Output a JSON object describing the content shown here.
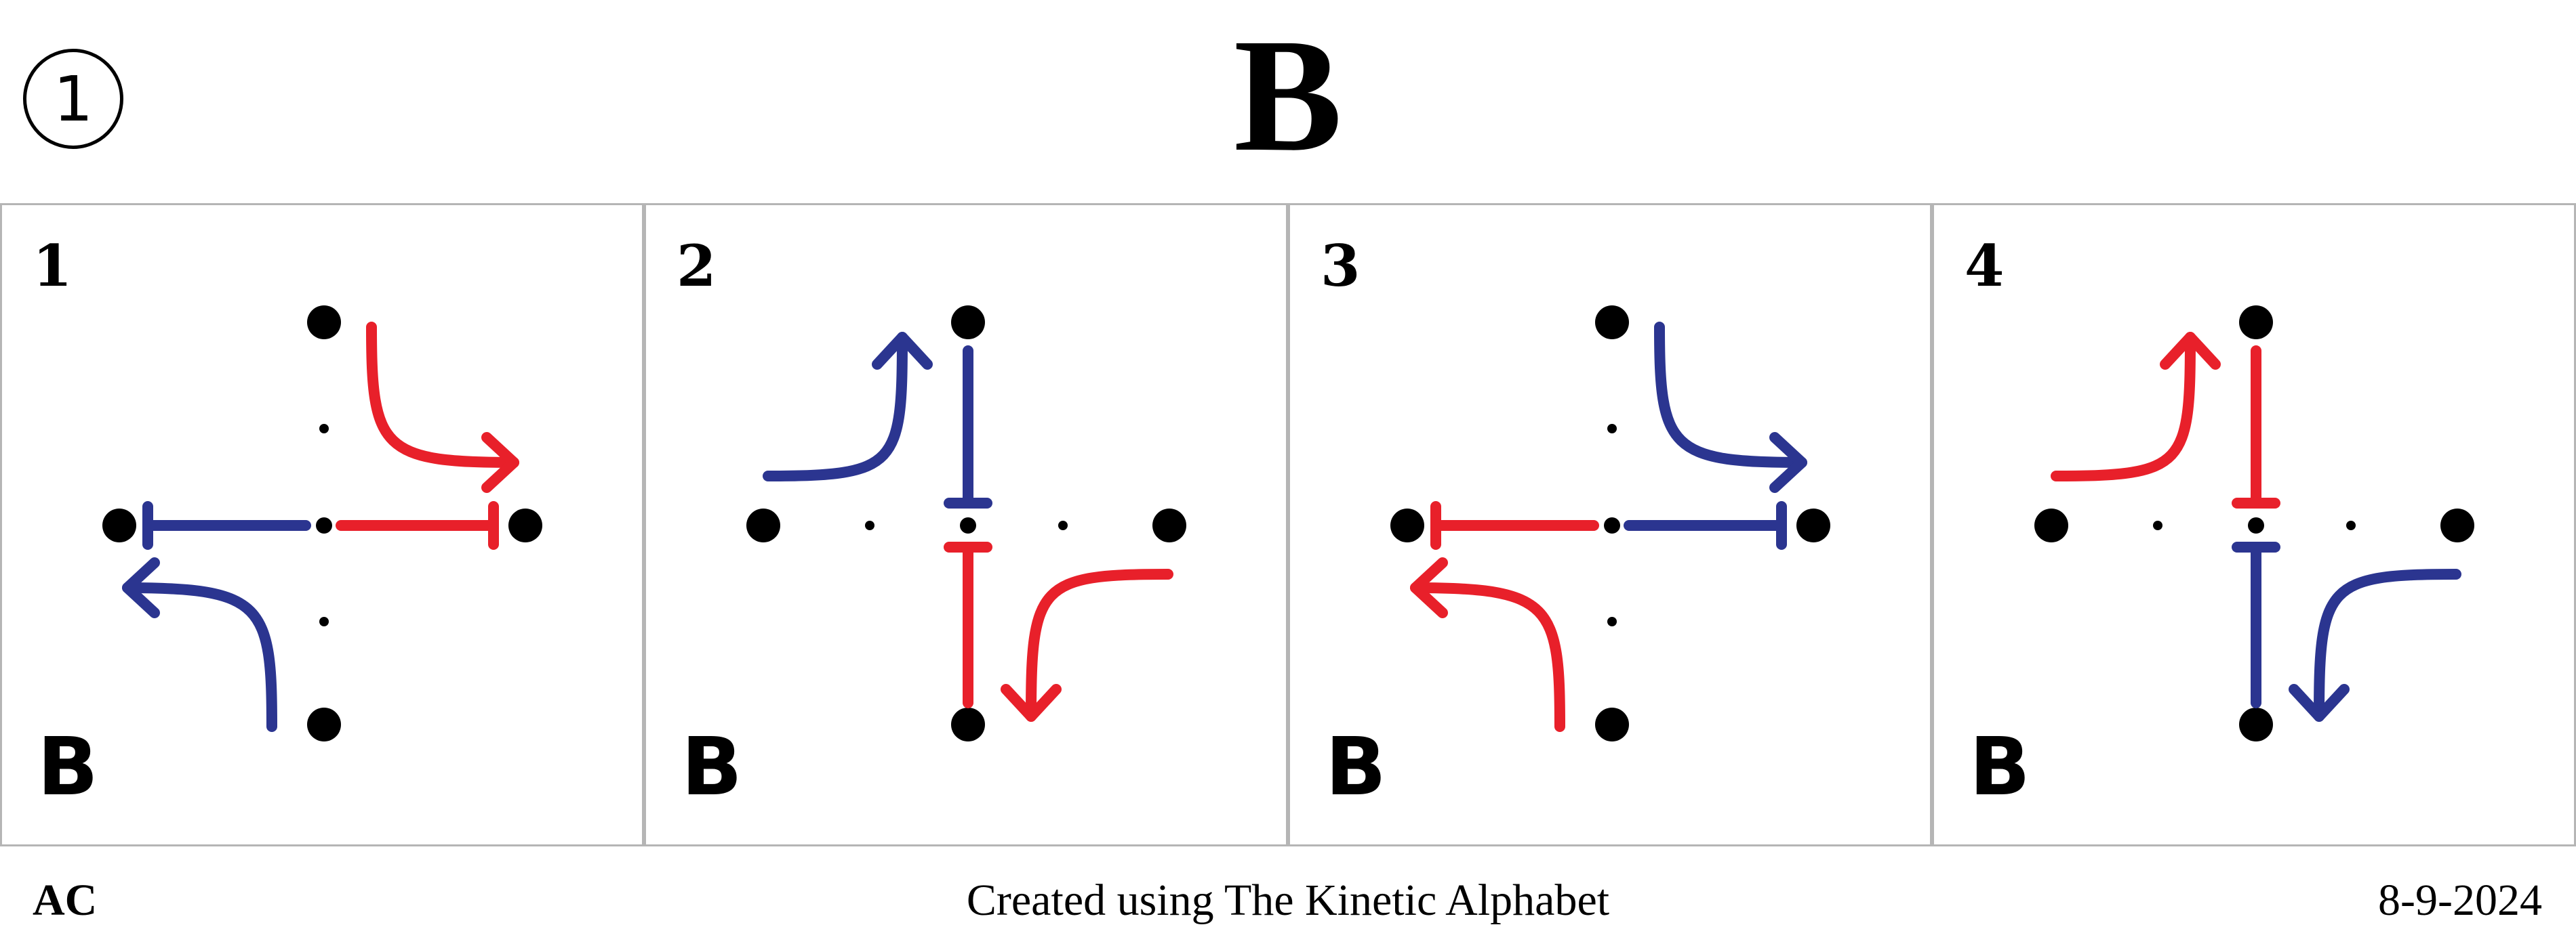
{
  "header": {
    "badge": "1",
    "title": "B"
  },
  "panels": [
    {
      "number": "1",
      "letter": "B",
      "hand_a_color": "#e8202a",
      "hand_b_color": "#2b3590"
    },
    {
      "number": "2",
      "letter": "B",
      "hand_a_color": "#2b3590",
      "hand_b_color": "#e8202a"
    },
    {
      "number": "3",
      "letter": "B",
      "hand_a_color": "#2b3590",
      "hand_b_color": "#e8202a"
    },
    {
      "number": "4",
      "letter": "B",
      "hand_a_color": "#e8202a",
      "hand_b_color": "#2b3590"
    }
  ],
  "footer": {
    "left": "AC",
    "center": "Created using The Kinetic Alphabet",
    "right": "8-9-2024"
  },
  "colors": {
    "red": "#e8202a",
    "blue": "#2b3590",
    "dot": "#000000",
    "border": "#b5b5b5"
  }
}
